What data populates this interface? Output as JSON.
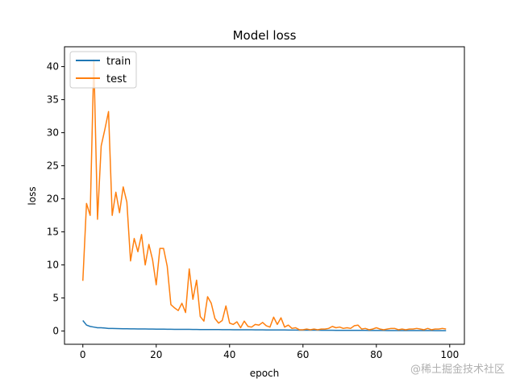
{
  "chart_data": {
    "type": "line",
    "title": "Model loss",
    "xlabel": "epoch",
    "ylabel": "loss",
    "xlim": [
      -5,
      104
    ],
    "ylim": [
      -2,
      43
    ],
    "xticks": [
      0,
      20,
      40,
      60,
      80,
      100
    ],
    "yticks": [
      0,
      5,
      10,
      15,
      20,
      25,
      30,
      35,
      40
    ],
    "grid": false,
    "legend_position": "top-left",
    "series": [
      {
        "name": "train",
        "color": "#1f77b4",
        "values": [
          1.6,
          0.9,
          0.7,
          0.6,
          0.5,
          0.5,
          0.45,
          0.4,
          0.4,
          0.38,
          0.36,
          0.35,
          0.34,
          0.33,
          0.33,
          0.32,
          0.31,
          0.31,
          0.3,
          0.3,
          0.29,
          0.28,
          0.28,
          0.27,
          0.27,
          0.26,
          0.26,
          0.25,
          0.25,
          0.25,
          0.24,
          0.24,
          0.23,
          0.23,
          0.23,
          0.22,
          0.22,
          0.22,
          0.21,
          0.21,
          0.21,
          0.2,
          0.2,
          0.2,
          0.19,
          0.19,
          0.19,
          0.18,
          0.18,
          0.18,
          0.17,
          0.17,
          0.17,
          0.16,
          0.16,
          0.16,
          0.15,
          0.15,
          0.15,
          0.14,
          0.14,
          0.14,
          0.13,
          0.13,
          0.13,
          0.12,
          0.12,
          0.12,
          0.12,
          0.11,
          0.11,
          0.11,
          0.11,
          0.1,
          0.1,
          0.1,
          0.1,
          0.1,
          0.09,
          0.09,
          0.09,
          0.09,
          0.09,
          0.08,
          0.08,
          0.08,
          0.08,
          0.08,
          0.08,
          0.07,
          0.07,
          0.07,
          0.07,
          0.07,
          0.07,
          0.07,
          0.06,
          0.06,
          0.06,
          0.06
        ]
      },
      {
        "name": "test",
        "color": "#ff7f0e",
        "values": [
          7.6,
          19.3,
          17.5,
          41.0,
          16.9,
          28.0,
          30.5,
          33.2,
          17.5,
          21.0,
          17.9,
          21.8,
          19.5,
          10.6,
          14.0,
          12.0,
          14.6,
          10.0,
          13.1,
          10.8,
          7.0,
          12.5,
          12.5,
          9.8,
          4.0,
          3.5,
          3.1,
          4.2,
          2.8,
          9.4,
          4.8,
          7.7,
          2.2,
          1.5,
          5.2,
          4.2,
          1.9,
          1.2,
          1.6,
          3.8,
          1.2,
          1.0,
          1.4,
          0.5,
          1.5,
          0.7,
          0.6,
          1.0,
          0.9,
          1.3,
          0.8,
          0.6,
          2.1,
          1.0,
          2.0,
          0.6,
          0.9,
          0.4,
          0.5,
          0.2,
          0.2,
          0.3,
          0.2,
          0.3,
          0.2,
          0.3,
          0.3,
          0.4,
          0.7,
          0.5,
          0.6,
          0.4,
          0.5,
          0.4,
          0.8,
          0.9,
          0.3,
          0.4,
          0.2,
          0.3,
          0.5,
          0.3,
          0.2,
          0.3,
          0.4,
          0.4,
          0.2,
          0.3,
          0.2,
          0.3,
          0.3,
          0.4,
          0.3,
          0.2,
          0.4,
          0.2,
          0.3,
          0.3,
          0.4,
          0.3
        ]
      }
    ]
  },
  "watermark": "@稀土掘金技术社区"
}
